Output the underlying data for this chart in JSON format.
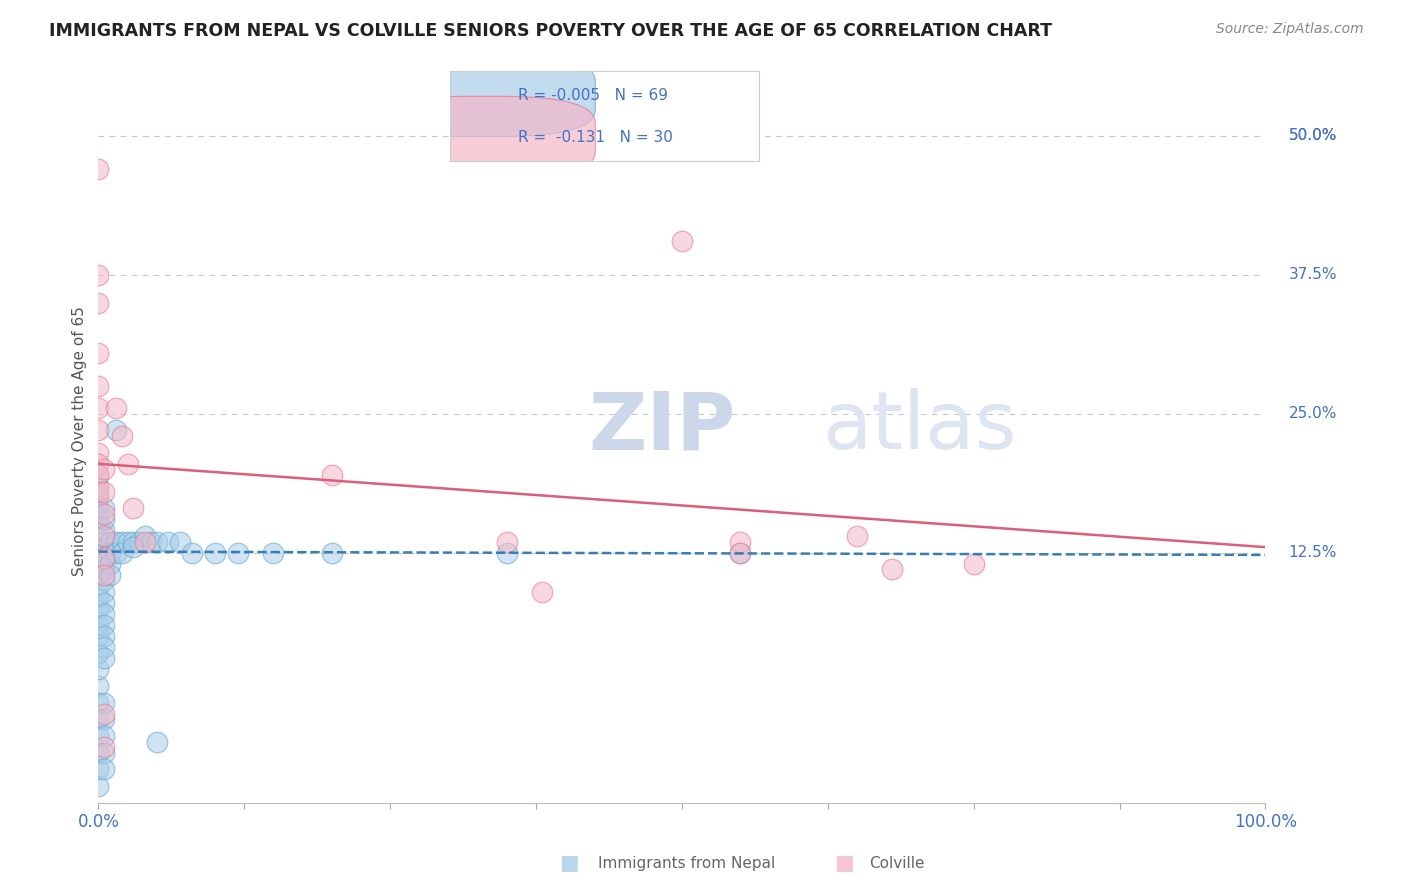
{
  "title": "IMMIGRANTS FROM NEPAL VS COLVILLE SENIORS POVERTY OVER THE AGE OF 65 CORRELATION CHART",
  "source_text": "Source: ZipAtlas.com",
  "ylabel": "Seniors Poverty Over the Age of 65",
  "xlim": [
    0,
    100
  ],
  "ylim": [
    -10,
    55
  ],
  "x_ticks": [
    0,
    12.5,
    25,
    37.5,
    50,
    62.5,
    75,
    87.5,
    100
  ],
  "x_tick_labels_show": [
    "0.0%",
    "",
    "",
    "",
    "",
    "",
    "",
    "",
    "100.0%"
  ],
  "y_tick_values": [
    12.5,
    25.0,
    37.5,
    50.0
  ],
  "y_tick_labels": [
    "12.5%",
    "25.0%",
    "37.5%",
    "50.0%"
  ],
  "watermark_zip": "ZIP",
  "watermark_atlas": "atlas",
  "blue_color": "#a8cde8",
  "pink_color": "#f4b8c8",
  "blue_edge_color": "#5ba3d0",
  "pink_edge_color": "#e8708a",
  "blue_line_color": "#3a7db5",
  "pink_line_color": "#d95f7a",
  "grid_color": "#c8c8c8",
  "axis_label_color": "#4472c4",
  "nepal_points": [
    [
      0.0,
      0.5
    ],
    [
      0.0,
      2.0
    ],
    [
      0.0,
      3.5
    ],
    [
      0.0,
      5.0
    ],
    [
      0.0,
      6.0
    ],
    [
      0.0,
      7.5
    ],
    [
      0.0,
      8.5
    ],
    [
      0.0,
      9.5
    ],
    [
      0.0,
      10.5
    ],
    [
      0.0,
      11.5
    ],
    [
      0.0,
      12.5
    ],
    [
      0.0,
      13.5
    ],
    [
      0.0,
      14.5
    ],
    [
      0.0,
      15.5
    ],
    [
      0.0,
      16.5
    ],
    [
      0.0,
      17.5
    ],
    [
      0.0,
      18.5
    ],
    [
      0.0,
      19.5
    ],
    [
      0.0,
      -1.0
    ],
    [
      0.0,
      -2.5
    ],
    [
      0.0,
      -4.0
    ],
    [
      0.0,
      -5.5
    ],
    [
      0.0,
      -7.0
    ],
    [
      0.0,
      -8.5
    ],
    [
      0.5,
      12.5
    ],
    [
      0.5,
      13.5
    ],
    [
      0.5,
      14.5
    ],
    [
      0.5,
      15.5
    ],
    [
      0.5,
      16.5
    ],
    [
      0.5,
      12.0
    ],
    [
      0.5,
      11.0
    ],
    [
      0.5,
      10.0
    ],
    [
      0.5,
      9.0
    ],
    [
      0.5,
      8.0
    ],
    [
      0.5,
      7.0
    ],
    [
      0.5,
      6.0
    ],
    [
      0.5,
      5.0
    ],
    [
      0.5,
      4.0
    ],
    [
      0.5,
      3.0
    ],
    [
      0.5,
      -1.0
    ],
    [
      0.5,
      -2.5
    ],
    [
      0.5,
      -4.0
    ],
    [
      0.5,
      -5.5
    ],
    [
      0.5,
      -7.0
    ],
    [
      1.0,
      13.5
    ],
    [
      1.0,
      12.5
    ],
    [
      1.0,
      11.5
    ],
    [
      1.0,
      10.5
    ],
    [
      1.5,
      13.5
    ],
    [
      1.5,
      12.5
    ],
    [
      2.0,
      13.5
    ],
    [
      2.0,
      12.5
    ],
    [
      2.5,
      13.5
    ],
    [
      3.0,
      13.5
    ],
    [
      3.5,
      13.5
    ],
    [
      4.0,
      14.0
    ],
    [
      4.5,
      13.5
    ],
    [
      5.0,
      13.5
    ],
    [
      6.0,
      13.5
    ],
    [
      7.0,
      13.5
    ],
    [
      1.5,
      23.5
    ],
    [
      3.0,
      13.0
    ],
    [
      5.0,
      -4.5
    ],
    [
      8.0,
      12.5
    ],
    [
      10.0,
      12.5
    ],
    [
      12.0,
      12.5
    ],
    [
      15.0,
      12.5
    ],
    [
      20.0,
      12.5
    ],
    [
      35.0,
      12.5
    ],
    [
      55.0,
      12.5
    ]
  ],
  "colville_points": [
    [
      0.0,
      47.0
    ],
    [
      0.0,
      37.5
    ],
    [
      0.0,
      35.0
    ],
    [
      0.0,
      30.5
    ],
    [
      0.0,
      27.5
    ],
    [
      0.0,
      25.5
    ],
    [
      0.0,
      23.5
    ],
    [
      0.0,
      21.5
    ],
    [
      0.0,
      20.5
    ],
    [
      0.0,
      19.5
    ],
    [
      0.0,
      18.0
    ],
    [
      0.5,
      20.0
    ],
    [
      0.5,
      18.0
    ],
    [
      0.5,
      16.0
    ],
    [
      0.5,
      14.0
    ],
    [
      0.5,
      12.0
    ],
    [
      0.5,
      10.5
    ],
    [
      0.5,
      -2.0
    ],
    [
      0.5,
      -5.0
    ],
    [
      1.5,
      25.5
    ],
    [
      2.0,
      23.0
    ],
    [
      2.5,
      20.5
    ],
    [
      3.0,
      16.5
    ],
    [
      4.0,
      13.5
    ],
    [
      20.0,
      19.5
    ],
    [
      35.0,
      13.5
    ],
    [
      38.0,
      9.0
    ],
    [
      50.0,
      40.5
    ],
    [
      55.0,
      13.5
    ],
    [
      55.0,
      12.5
    ],
    [
      65.0,
      14.0
    ],
    [
      68.0,
      11.0
    ],
    [
      75.0,
      11.5
    ]
  ],
  "nepal_trend_x": [
    0,
    100
  ],
  "nepal_trend_y": [
    12.6,
    12.3
  ],
  "colville_trend_x": [
    0,
    100
  ],
  "colville_trend_y": [
    20.5,
    13.0
  ]
}
